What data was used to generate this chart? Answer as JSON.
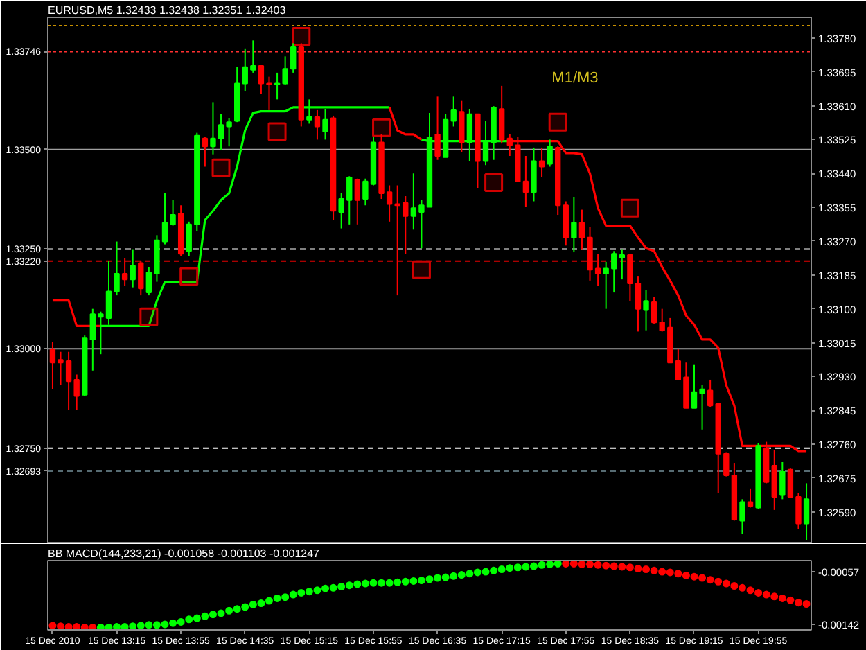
{
  "chart_data": [
    {
      "type": "candlestick",
      "title": "EURUSD,M5 1.32433 1.32438 1.32351 1.32403",
      "categories": [
        null,
        null,
        null,
        null,
        null,
        null,
        null,
        null,
        null,
        null,
        null,
        null,
        null,
        null,
        null,
        null,
        null,
        null,
        null,
        null,
        null,
        null,
        null,
        null,
        null,
        null,
        null,
        null,
        null,
        null,
        null,
        null,
        null,
        null,
        null,
        null,
        null,
        null,
        null,
        null,
        null,
        null,
        null,
        null,
        null,
        null,
        null,
        null,
        null,
        null,
        null,
        null,
        null,
        null,
        null,
        null,
        null,
        null,
        null,
        null,
        null,
        null,
        null,
        null,
        null,
        null,
        null,
        null,
        null,
        null,
        null,
        null,
        null,
        null,
        null,
        null,
        null,
        null,
        null,
        null,
        null,
        null,
        null,
        null,
        null,
        null,
        null,
        null,
        null,
        null,
        null,
        null,
        null,
        null,
        null
      ],
      "ohlc": [
        [
          1.32999,
          1.33016,
          1.32898,
          1.32965
        ],
        [
          1.32972,
          1.32992,
          1.32908,
          1.32965
        ],
        [
          1.32969,
          1.32992,
          1.32847,
          1.32918
        ],
        [
          1.32922,
          1.32935,
          1.32847,
          1.32881
        ],
        [
          1.32884,
          1.33033,
          1.32881,
          1.33026
        ],
        [
          1.33023,
          1.331,
          1.32945,
          1.33087
        ],
        [
          1.3308,
          1.33093,
          1.32986,
          1.33087
        ],
        [
          1.33077,
          1.33221,
          1.3306,
          1.33144
        ],
        [
          1.33144,
          1.33269,
          1.33134,
          1.33188
        ],
        [
          1.33188,
          1.33228,
          1.33157,
          1.33174
        ],
        [
          1.33174,
          1.33248,
          1.33154,
          1.33208
        ],
        [
          1.33215,
          1.33221,
          1.33134,
          1.33151
        ],
        [
          1.33141,
          1.33205,
          1.33134,
          1.33191
        ],
        [
          1.33188,
          1.33285,
          1.33168,
          1.33272
        ],
        [
          1.33269,
          1.3339,
          1.33262,
          1.33316
        ],
        [
          1.33312,
          1.33373,
          1.33309,
          1.33336
        ],
        [
          1.33339,
          1.3336,
          1.33232,
          1.33238
        ],
        [
          1.33245,
          1.33319,
          1.33232,
          1.33312
        ],
        [
          1.33312,
          1.33542,
          1.33296,
          1.33535
        ],
        [
          1.33528,
          1.33531,
          1.33457,
          1.33508
        ],
        [
          1.33508,
          1.33619,
          1.33488,
          1.33528
        ],
        [
          1.33528,
          1.33589,
          1.33498,
          1.33562
        ],
        [
          1.33558,
          1.33579,
          1.33508,
          1.33569
        ],
        [
          1.33572,
          1.33707,
          1.33569,
          1.33666
        ],
        [
          1.33666,
          1.33754,
          1.33646,
          1.33707
        ],
        [
          1.337,
          1.33774,
          1.33693,
          1.3371
        ],
        [
          1.3371,
          1.3371,
          1.33639,
          1.33666
        ],
        [
          1.33666,
          1.33683,
          1.33599,
          1.33663
        ],
        [
          1.33663,
          1.33693,
          1.33626,
          1.33666
        ],
        [
          1.33666,
          1.33734,
          1.33663,
          1.33703
        ],
        [
          1.33703,
          1.33767,
          1.33693,
          1.33757
        ],
        [
          1.33757,
          1.33767,
          1.33558,
          1.33575
        ],
        [
          1.33575,
          1.33626,
          1.33565,
          1.33582
        ],
        [
          1.33582,
          1.33599,
          1.33525,
          1.33558
        ],
        [
          1.33545,
          1.33602,
          1.33525,
          1.33575
        ],
        [
          1.33579,
          1.33585,
          1.33323,
          1.33346
        ],
        [
          1.33343,
          1.3339,
          1.33302,
          1.33376
        ],
        [
          1.33373,
          1.33433,
          1.33312,
          1.3343
        ],
        [
          1.33424,
          1.33427,
          1.33312,
          1.33373
        ],
        [
          1.33376,
          1.33427,
          1.3336,
          1.3342
        ],
        [
          1.33413,
          1.33531,
          1.3341,
          1.33518
        ],
        [
          1.33518,
          1.33538,
          1.33376,
          1.3339
        ],
        [
          1.33393,
          1.3341,
          1.33319,
          1.33363
        ],
        [
          1.33363,
          1.3341,
          1.33134,
          1.3336
        ],
        [
          1.33366,
          1.33383,
          1.33238,
          1.33333
        ],
        [
          1.33333,
          1.3344,
          1.33299,
          1.33353
        ],
        [
          1.33343,
          1.33373,
          1.33252,
          1.3336
        ],
        [
          1.33356,
          1.33592,
          1.33356,
          1.33531
        ],
        [
          1.33538,
          1.33633,
          1.33474,
          1.33484
        ],
        [
          1.33481,
          1.33589,
          1.33481,
          1.33575
        ],
        [
          1.33572,
          1.33633,
          1.33558,
          1.33599
        ],
        [
          1.33595,
          1.33622,
          1.33494,
          1.33518
        ],
        [
          1.33518,
          1.33602,
          1.33471,
          1.33589
        ],
        [
          1.33589,
          1.33589,
          1.33403,
          1.33471
        ],
        [
          1.33471,
          1.33572,
          1.33461,
          1.33518
        ],
        [
          1.33518,
          1.33609,
          1.33474,
          1.33606
        ],
        [
          1.33602,
          1.3366,
          1.33515,
          1.33525
        ],
        [
          1.33528,
          1.33538,
          1.33484,
          1.33511
        ],
        [
          1.33511,
          1.33531,
          1.3342,
          1.3342
        ],
        [
          1.3342,
          1.33484,
          1.33356,
          1.33393
        ],
        [
          1.33393,
          1.33505,
          1.3337,
          1.33471
        ],
        [
          1.33471,
          1.33505,
          1.3343,
          1.33457
        ],
        [
          1.33464,
          1.33525,
          1.33457,
          1.33508
        ],
        [
          1.33505,
          1.33508,
          1.33336,
          1.3336
        ],
        [
          1.3336,
          1.3337,
          1.33259,
          1.33279
        ],
        [
          1.33279,
          1.3338,
          1.33242,
          1.33316
        ],
        [
          1.33316,
          1.33349,
          1.33248,
          1.33279
        ],
        [
          1.33279,
          1.33306,
          1.33171,
          1.33198
        ],
        [
          1.33201,
          1.33238,
          1.33157,
          1.33188
        ],
        [
          1.33188,
          1.33218,
          1.331,
          1.33201
        ],
        [
          1.33201,
          1.33245,
          1.33141,
          1.33238
        ],
        [
          1.33228,
          1.33248,
          1.33174,
          1.33235
        ],
        [
          1.33235,
          1.33238,
          1.3312,
          1.33164
        ],
        [
          1.33164,
          1.33181,
          1.33043,
          1.331
        ],
        [
          1.33097,
          1.33147,
          1.33046,
          1.3312
        ],
        [
          1.33117,
          1.3313,
          1.33063,
          1.33066
        ],
        [
          1.33066,
          1.331,
          1.33043,
          1.33046
        ],
        [
          1.33053,
          1.33077,
          1.32965,
          1.32965
        ],
        [
          1.32969,
          1.32999,
          1.32922,
          1.32922
        ],
        [
          1.32928,
          1.32965,
          1.32851,
          1.32851
        ],
        [
          1.32851,
          1.32959,
          1.32851,
          1.32891
        ],
        [
          1.32888,
          1.32908,
          1.32797,
          1.32898
        ],
        [
          1.32895,
          1.32922,
          1.32854,
          1.32857
        ],
        [
          1.32861,
          1.32864,
          1.32638,
          1.32736
        ],
        [
          1.32736,
          1.3274,
          1.32679,
          1.32682
        ],
        [
          1.32682,
          1.32713,
          1.32568,
          1.32571
        ],
        [
          1.32568,
          1.32622,
          1.32534,
          1.32615
        ],
        [
          1.32615,
          1.32649,
          1.32601,
          1.32605
        ],
        [
          1.32601,
          1.32763,
          1.32598,
          1.32756
        ],
        [
          1.3275,
          1.32766,
          1.32662,
          1.32665
        ],
        [
          1.32706,
          1.32746,
          1.32595,
          1.32628
        ],
        [
          1.32632,
          1.32716,
          1.32622,
          1.32692
        ],
        [
          1.32696,
          1.32699,
          1.32628,
          1.32628
        ],
        [
          1.32628,
          1.32638,
          1.32547,
          1.32561
        ],
        [
          1.32561,
          1.32662,
          1.3252,
          1.32622
        ]
      ],
      "colors": [
        "#ff0000",
        "#ff0000",
        "#ff0000",
        "#ff0000",
        "#00ff00",
        "#00ff00",
        "#00ff00",
        "#00ff00",
        "#00ff00",
        "#ff0000",
        "#00ff00",
        "#ff0000",
        "#00ff00",
        "#00ff00",
        "#00ff00",
        "#00ff00",
        "#ff0000",
        "#00ff00",
        "#00ff00",
        "#ff0000",
        "#00ff00",
        "#00ff00",
        "#00ff00",
        "#00ff00",
        "#00ff00",
        "#00ff00",
        "#ff0000",
        "#ff0000",
        "#00ff00",
        "#00ff00",
        "#00ff00",
        "#ff0000",
        "#00ff00",
        "#ff0000",
        "#00ff00",
        "#ff0000",
        "#00ff00",
        "#00ff00",
        "#ff0000",
        "#00ff00",
        "#00ff00",
        "#ff0000",
        "#ff0000",
        "#ff0000",
        "#ff0000",
        "#00ff00",
        "#00ff00",
        "#00ff00",
        "#ff0000",
        "#00ff00",
        "#00ff00",
        "#ff0000",
        "#00ff00",
        "#ff0000",
        "#00ff00",
        "#00ff00",
        "#ff0000",
        "#ff0000",
        "#ff0000",
        "#ff0000",
        "#00ff00",
        "#ff0000",
        "#00ff00",
        "#ff0000",
        "#ff0000",
        "#00ff00",
        "#ff0000",
        "#ff0000",
        "#ff0000",
        "#00ff00",
        "#00ff00",
        "#00ff00",
        "#ff0000",
        "#ff0000",
        "#00ff00",
        "#ff0000",
        "#ff0000",
        "#ff0000",
        "#ff0000",
        "#ff0000",
        "#00ff00",
        "#00ff00",
        "#ff0000",
        "#ff0000",
        "#ff0000",
        "#ff0000",
        "#00ff00",
        "#ff0000",
        "#00ff00",
        "#ff0000",
        "#ff0000",
        "#00ff00",
        "#ff0000",
        "#ff0000",
        "#00ff00"
      ],
      "series": [
        {
          "type": "line",
          "color": "#00ff00",
          "values": [
            null,
            null,
            null,
            null,
            null,
            null,
            1.33057,
            1.33057,
            1.33057,
            1.33057,
            1.33057,
            1.33057,
            1.33057,
            1.3312,
            1.33168,
            1.33168,
            1.33168,
            1.33168,
            1.33168,
            1.33323,
            1.33346,
            1.33373,
            1.3339,
            1.33457,
            1.33548,
            1.33592,
            1.33596,
            1.33596,
            1.33596,
            1.33596,
            1.33606,
            1.33606,
            1.33606,
            1.33606,
            1.33606,
            1.33606,
            1.33606,
            1.33606,
            1.33606,
            1.33606,
            1.33606,
            1.33606,
            1.33606,
            null,
            null,
            null,
            1.33525,
            1.33521,
            1.33521,
            1.33521,
            1.33521,
            1.33521,
            1.33521,
            1.33521,
            1.33521,
            1.33521,
            1.33521,
            1.33521,
            null,
            null,
            null,
            null,
            null,
            null,
            null,
            null,
            null,
            null,
            null,
            null,
            null,
            null,
            null,
            null,
            null,
            null,
            null,
            null,
            null,
            null,
            null,
            null,
            null,
            null,
            null,
            null,
            null,
            null,
            null,
            null,
            null,
            null,
            null,
            null,
            null
          ]
        },
        {
          "type": "line",
          "color": "#ff0000",
          "values": [
            1.33121,
            1.33121,
            1.33121,
            1.33057,
            1.33057,
            1.33057,
            1.33057,
            null,
            null,
            null,
            null,
            null,
            null,
            null,
            null,
            null,
            null,
            null,
            null,
            null,
            null,
            null,
            null,
            null,
            null,
            null,
            null,
            null,
            null,
            null,
            null,
            null,
            null,
            null,
            null,
            null,
            null,
            null,
            null,
            null,
            null,
            null,
            1.33606,
            1.33548,
            1.33538,
            1.33538,
            1.33525,
            null,
            null,
            null,
            null,
            null,
            null,
            null,
            null,
            null,
            null,
            1.33521,
            1.33521,
            1.33521,
            1.33521,
            1.33521,
            1.33521,
            1.33521,
            1.33491,
            1.33491,
            1.33488,
            1.3344,
            1.33353,
            1.33309,
            1.33309,
            1.33309,
            1.33309,
            1.33279,
            1.33252,
            1.33245,
            1.33205,
            1.33171,
            1.33134,
            1.33083,
            1.3306,
            1.33023,
            1.33023,
            1.33002,
            1.32908,
            1.32857,
            1.32756,
            1.32756,
            1.32756,
            1.32756,
            1.32756,
            1.32756,
            1.32756,
            1.32743,
            1.32743
          ]
        },
        {
          "type": "scatter",
          "color": "#d00000",
          "marker": "square",
          "values": [
            null,
            null,
            null,
            null,
            null,
            null,
            null,
            null,
            null,
            null,
            null,
            null,
            1.3308,
            null,
            null,
            null,
            null,
            1.33181,
            null,
            null,
            null,
            1.33454,
            null,
            null,
            null,
            null,
            null,
            null,
            1.33545,
            null,
            null,
            1.33784,
            null,
            null,
            null,
            null,
            null,
            null,
            null,
            null,
            null,
            1.33555,
            null,
            null,
            null,
            null,
            1.33198,
            null,
            null,
            null,
            null,
            null,
            null,
            null,
            null,
            1.33417,
            null,
            null,
            null,
            null,
            null,
            null,
            null,
            1.33569,
            null,
            null,
            null,
            null,
            null,
            null,
            null,
            null,
            1.33353,
            null,
            null,
            null,
            null,
            null,
            null,
            null,
            null,
            null,
            null,
            null,
            null,
            null,
            null,
            null,
            null,
            null,
            null,
            null,
            null,
            null,
            null
          ]
        }
      ],
      "ylim": [
        1.32513,
        1.33832
      ],
      "yticks": [
        {
          "value": 1.3378,
          "label": "1.33780"
        },
        1.33695,
        {
          "value": 1.3361,
          "label": "1.33610"
        },
        1.33525,
        {
          "value": 1.3344,
          "label": "1.33440"
        },
        1.33355,
        {
          "value": 1.3327,
          "label": "1.33270"
        },
        1.33185,
        {
          "value": 1.331,
          "label": "1.33100"
        },
        1.33015,
        {
          "value": 1.3293,
          "label": "1.32930"
        },
        1.32845,
        {
          "value": 1.3276,
          "label": "1.32760"
        },
        1.32675,
        {
          "value": 1.3259,
          "label": "1.32590"
        }
      ],
      "ref_lines": [
        {
          "axis": "y",
          "value": 1.33811,
          "color": "#c89000",
          "line_style": "dotted"
        },
        {
          "axis": "y",
          "value": 1.33746,
          "label": "1.33746",
          "color": "#ff3030",
          "line_style": "dotted"
        },
        {
          "axis": "y",
          "value": 1.335,
          "label": "1.33500",
          "color": "#a0a0a0",
          "line_style": "solid"
        },
        {
          "axis": "y",
          "value": 1.3325,
          "label": "1.33250",
          "color": "#ffffff",
          "line_style": "dashed"
        },
        {
          "axis": "y",
          "value": 1.3322,
          "label": "1.33220",
          "color": "#e00000",
          "line_style": "dashed"
        },
        {
          "axis": "y",
          "value": 1.33,
          "label": "1.33000",
          "color": "#a0a0a0",
          "line_style": "solid"
        },
        {
          "axis": "y",
          "value": 1.3275,
          "label": "1.32750",
          "color": "#ffffff",
          "line_style": "dashed"
        },
        {
          "axis": "y",
          "value": 1.32693,
          "label": "1.32693",
          "color": "#add8e6",
          "line_style": "dashed"
        }
      ],
      "annotations": [
        "M1/M3"
      ],
      "tick_labels": "y"
    },
    {
      "type": "scatter",
      "title": "BB MACD(144,233,21) -0.001058 -0.001103 -0.001247",
      "marker": "circle",
      "categories": [
        "15 Dec 2010",
        null,
        null,
        null,
        null,
        null,
        null,
        null,
        "15 Dec 13:15",
        null,
        null,
        null,
        null,
        null,
        null,
        null,
        "15 Dec 13:55",
        null,
        null,
        null,
        null,
        null,
        null,
        null,
        "15 Dec 14:35",
        null,
        null,
        null,
        null,
        null,
        null,
        null,
        "15 Dec 15:15",
        null,
        null,
        null,
        null,
        null,
        null,
        null,
        "15 Dec 15:55",
        null,
        null,
        null,
        null,
        null,
        null,
        null,
        "15 Dec 16:35",
        null,
        null,
        null,
        null,
        null,
        null,
        null,
        "15 Dec 17:15",
        null,
        null,
        null,
        null,
        null,
        null,
        null,
        "15 Dec 17:55",
        null,
        null,
        null,
        null,
        null,
        null,
        null,
        "15 Dec 18:35",
        null,
        null,
        null,
        null,
        null,
        null,
        null,
        "15 Dec 19:15",
        null,
        null,
        null,
        null,
        null,
        null,
        null,
        "15 Dec 19:55",
        null,
        null,
        null,
        null,
        null,
        null
      ],
      "values": [
        -0.00144,
        -0.00145,
        -0.00146,
        -0.00146,
        -0.00147,
        -0.00147,
        -0.00147,
        -0.00147,
        -0.00146,
        -0.00146,
        -0.00145,
        -0.00144,
        -0.00143,
        -0.00143,
        -0.00142,
        -0.0014,
        -0.00138,
        -0.00134,
        -0.00132,
        -0.00129,
        -0.00126,
        -0.00124,
        -0.0012,
        -0.00117,
        -0.00114,
        -0.0011,
        -0.00108,
        -0.00104,
        -0.001,
        -0.00098,
        -0.00094,
        -0.00091,
        -0.00089,
        -0.00087,
        -0.00084,
        -0.00083,
        -0.00081,
        -0.00079,
        -0.00077,
        -0.00076,
        -0.00075,
        -0.00075,
        -0.00075,
        -0.00074,
        -0.00073,
        -0.00072,
        -0.00071,
        -0.00069,
        -0.00067,
        -0.00066,
        -0.00064,
        -0.00062,
        -0.0006,
        -0.00058,
        -0.00057,
        -0.00055,
        -0.00053,
        -0.00051,
        -0.0005,
        -0.00049,
        -0.00048,
        -0.00046,
        -0.00045,
        -0.00044,
        -0.00044,
        -0.00044,
        -0.00045,
        -0.00045,
        -0.00046,
        -0.00047,
        -0.00048,
        -0.00049,
        -0.0005,
        -0.00052,
        -0.00053,
        -0.00055,
        -0.00057,
        -0.00058,
        -0.0006,
        -0.00063,
        -0.00065,
        -0.00067,
        -0.0007,
        -0.00073,
        -0.00076,
        -0.0008,
        -0.00083,
        -0.00087,
        -0.00091,
        -0.00094,
        -0.00097,
        -0.001,
        -0.00103,
        -0.00107,
        -0.00109
      ],
      "colors": [
        "#ff0000",
        "#ff0000",
        "#ff0000",
        "#ff0000",
        "#ff0000",
        "#ff0000",
        "#00ff00",
        "#00ff00",
        "#00ff00",
        "#00ff00",
        "#00ff00",
        "#00ff00",
        "#00ff00",
        "#00ff00",
        "#00ff00",
        "#00ff00",
        "#00ff00",
        "#00ff00",
        "#00ff00",
        "#00ff00",
        "#00ff00",
        "#00ff00",
        "#00ff00",
        "#00ff00",
        "#00ff00",
        "#00ff00",
        "#00ff00",
        "#00ff00",
        "#00ff00",
        "#00ff00",
        "#00ff00",
        "#00ff00",
        "#00ff00",
        "#00ff00",
        "#00ff00",
        "#00ff00",
        "#00ff00",
        "#00ff00",
        "#00ff00",
        "#00ff00",
        "#00ff00",
        "#00ff00",
        "#00ff00",
        "#00ff00",
        "#00ff00",
        "#00ff00",
        "#00ff00",
        "#00ff00",
        "#00ff00",
        "#00ff00",
        "#00ff00",
        "#00ff00",
        "#00ff00",
        "#00ff00",
        "#00ff00",
        "#00ff00",
        "#00ff00",
        "#00ff00",
        "#00ff00",
        "#00ff00",
        "#00ff00",
        "#00ff00",
        "#00ff00",
        "#00ff00",
        "#ff0000",
        "#ff0000",
        "#ff0000",
        "#ff0000",
        "#ff0000",
        "#ff0000",
        "#ff0000",
        "#ff0000",
        "#ff0000",
        "#ff0000",
        "#ff0000",
        "#ff0000",
        "#ff0000",
        "#ff0000",
        "#ff0000",
        "#ff0000",
        "#ff0000",
        "#ff0000",
        "#ff0000",
        "#ff0000",
        "#ff0000",
        "#ff0000",
        "#ff0000",
        "#ff0000",
        "#ff0000",
        "#ff0000",
        "#ff0000",
        "#ff0000",
        "#ff0000",
        "#ff0000",
        "#ff0000"
      ],
      "ylim": [
        -0.00151,
        -0.00039
      ],
      "yticks": [
        -0.00057,
        -0.00142
      ]
    }
  ]
}
